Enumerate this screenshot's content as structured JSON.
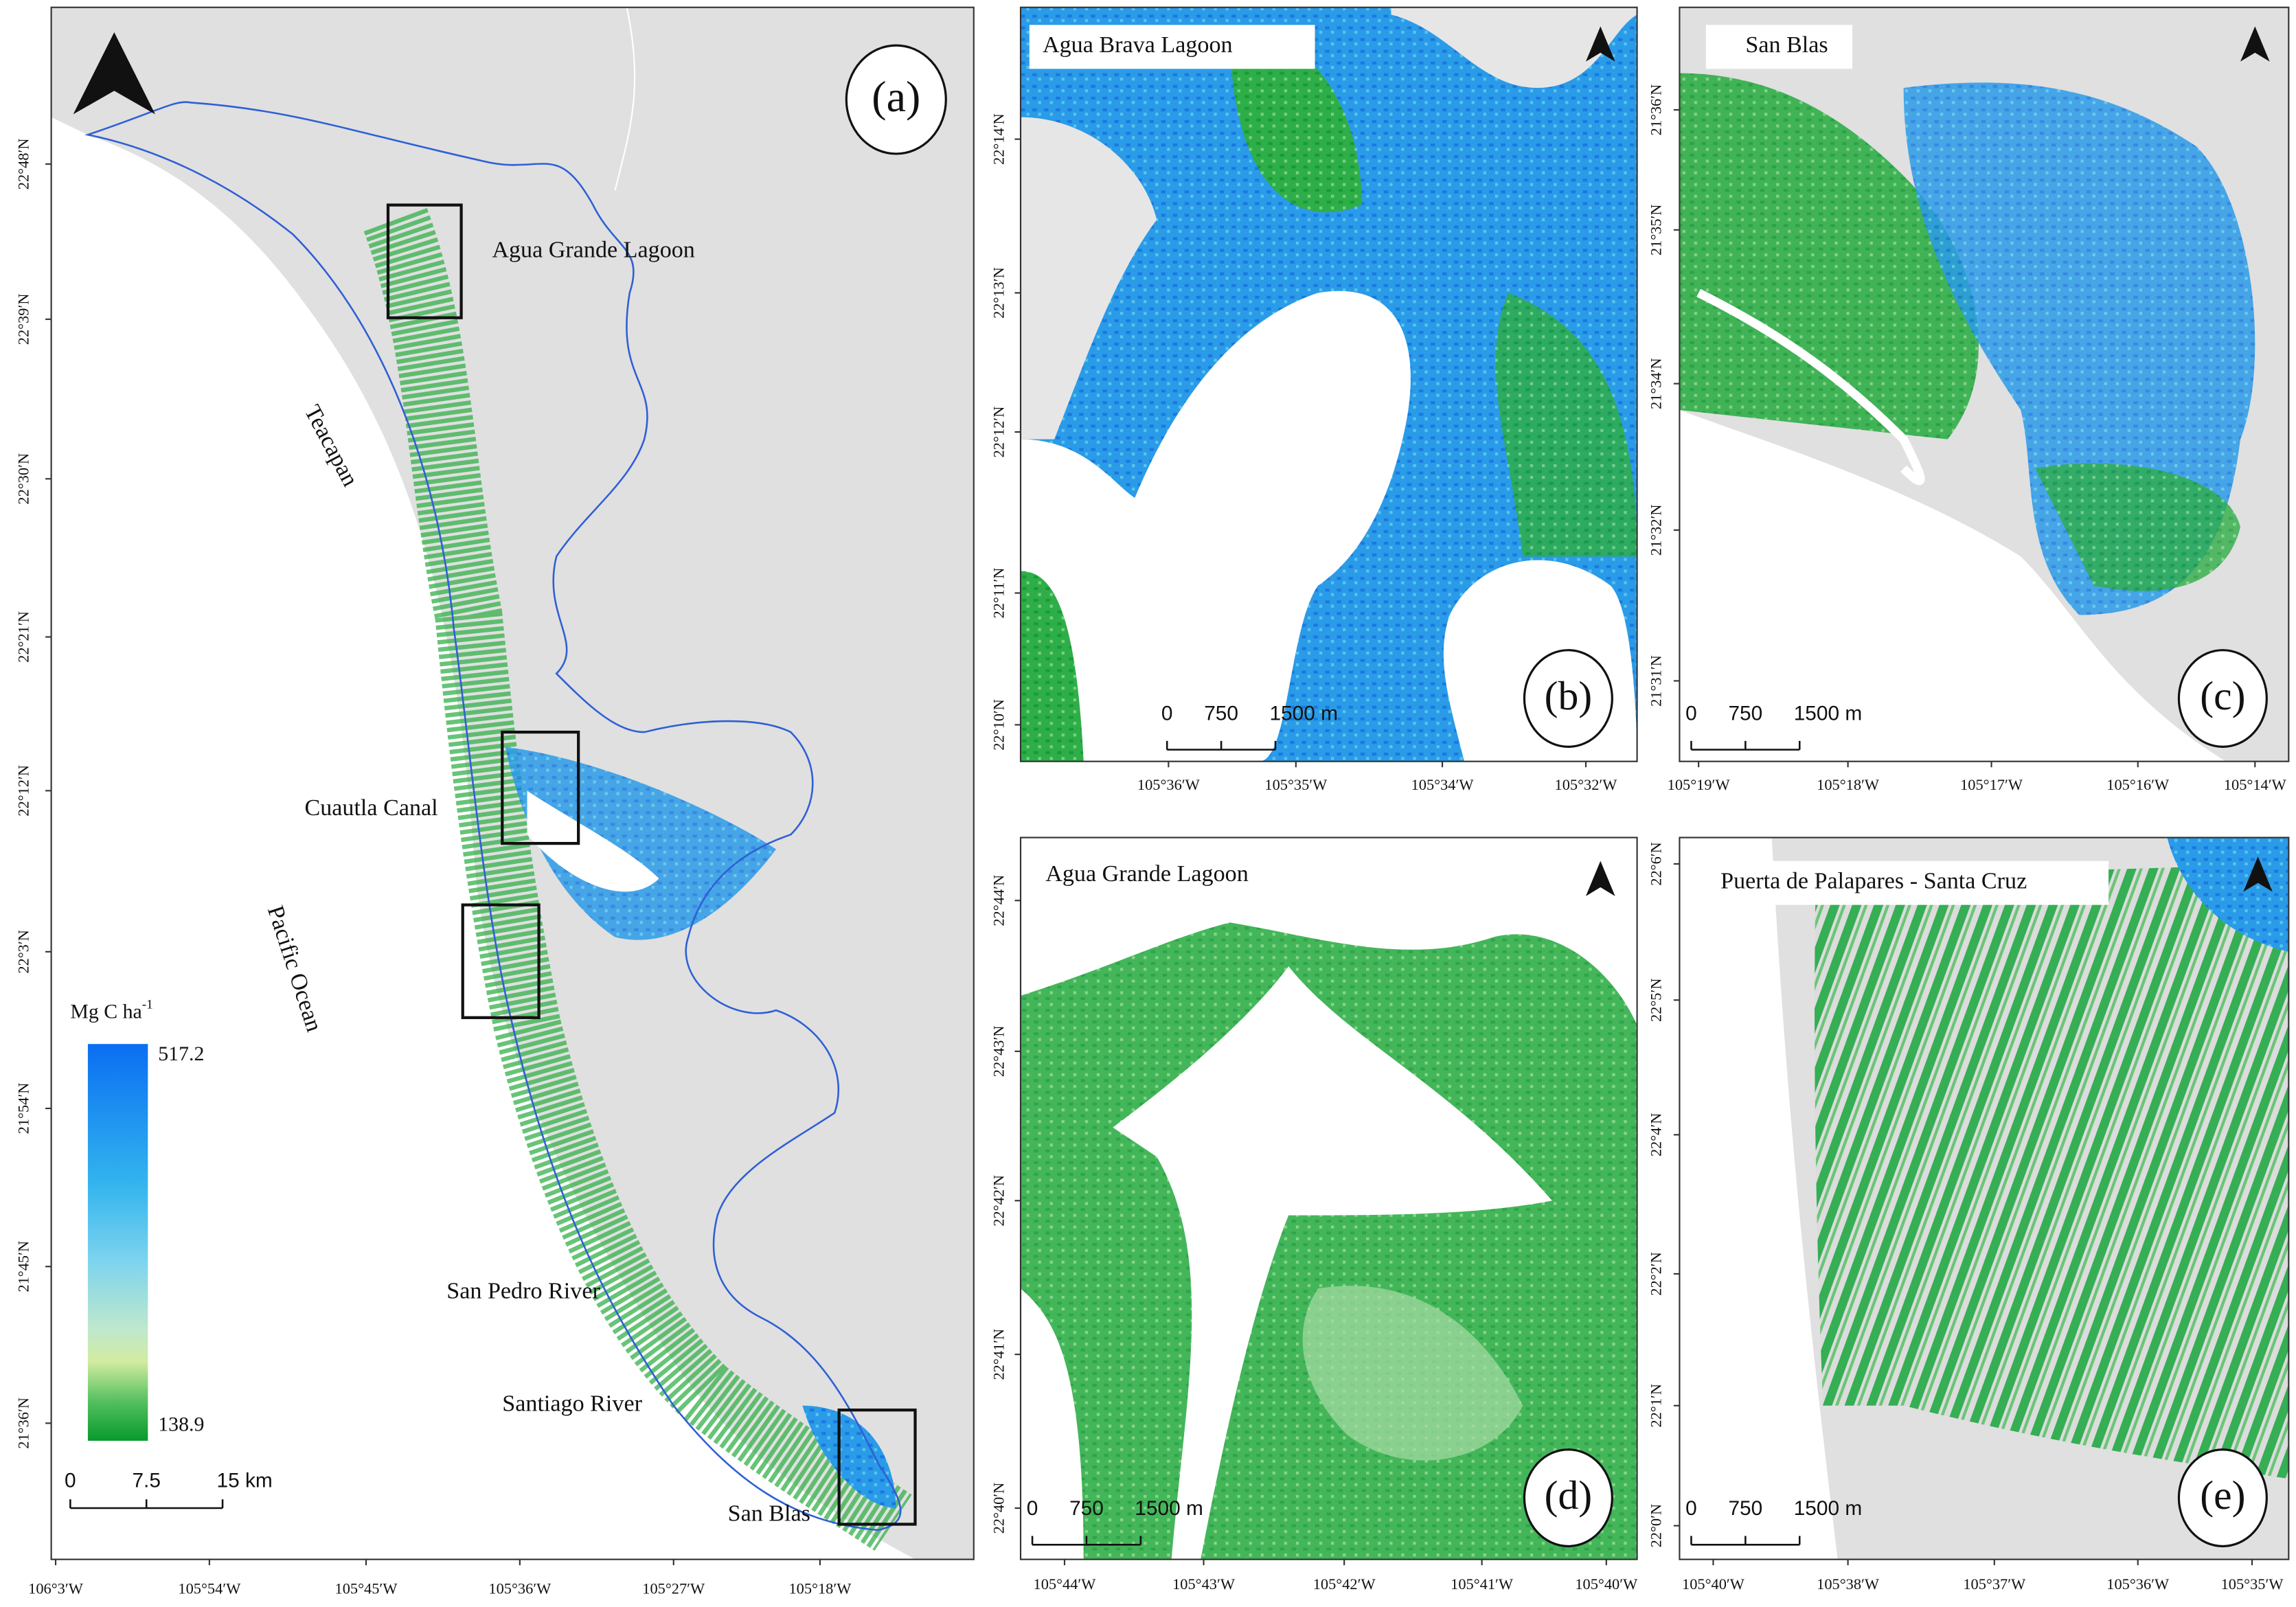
{
  "panels": [
    {
      "label": "(a)",
      "places": [
        "Agua Grande Lagoon",
        "Teacapan",
        "Cuautla Canal",
        "Pacific Ocean",
        "San Pedro River",
        "Santiago River",
        "San Blas"
      ],
      "lat_ticks": [
        "22°48′N",
        "22°39′N",
        "22°30′N",
        "22°21′N",
        "22°12′N",
        "22°3′N",
        "21°54′N",
        "21°45′N",
        "21°36′N"
      ],
      "lon_ticks": [
        "106°3′W",
        "105°54′W",
        "105°45′W",
        "105°36′W",
        "105°27′W",
        "105°18′W"
      ],
      "scale_bar": [
        "0",
        "7.5",
        "15 km"
      ]
    },
    {
      "label": "(b)",
      "title": "Agua Brava Lagoon",
      "lat_ticks": [
        "22°14′N",
        "22°13′N",
        "22°12′N",
        "22°11′N",
        "22°10′N"
      ],
      "lon_ticks": [
        "105°36′W",
        "105°35′W",
        "105°34′W",
        "105°32′W"
      ],
      "scale_bar": [
        "0",
        "750",
        "1500 m"
      ]
    },
    {
      "label": "(c)",
      "title": "San Blas",
      "lat_ticks": [
        "21°36′N",
        "21°35′N",
        "21°34′N",
        "21°32′N",
        "21°31′N"
      ],
      "lon_ticks": [
        "105°19′W",
        "105°18′W",
        "105°17′W",
        "105°16′W",
        "105°14′W"
      ],
      "scale_bar": [
        "0",
        "750",
        "1500 m"
      ]
    },
    {
      "label": "(d)",
      "title": "Agua Grande Lagoon",
      "lat_ticks": [
        "22°44′N",
        "22°43′N",
        "22°42′N",
        "22°41′N",
        "22°40′N"
      ],
      "lon_ticks": [
        "105°44′W",
        "105°43′W",
        "105°42′W",
        "105°41′W",
        "105°40′W"
      ],
      "scale_bar": [
        "0",
        "750",
        "1500 m"
      ]
    },
    {
      "label": "(e)",
      "title": "Puerta de Palapares - Santa Cruz",
      "lat_ticks": [
        "22°6′N",
        "22°5′N",
        "22°4′N",
        "22°2′N",
        "22°1′N",
        "22°0′N"
      ],
      "lon_ticks": [
        "105°40′W",
        "105°38′W",
        "105°37′W",
        "105°36′W",
        "105°35′W"
      ],
      "scale_bar": [
        "0",
        "750",
        "1500 m"
      ]
    }
  ],
  "legend": {
    "title": "Mg C ha",
    "title_exponent": "-1",
    "max": 517.2,
    "min": 138.9
  }
}
